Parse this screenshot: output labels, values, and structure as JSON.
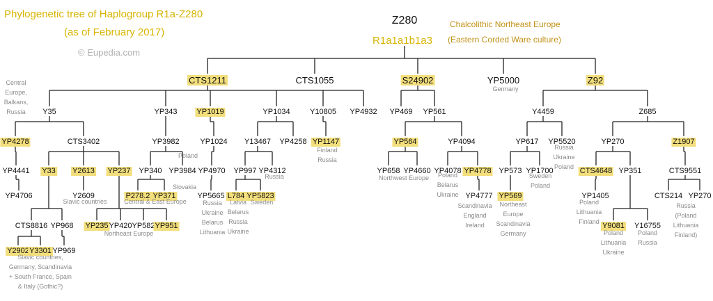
{
  "title": {
    "line1": "Phylogenetic tree of Haplogroup R1a-Z280",
    "line2": "(as of February 2017)",
    "copyright": "© Eupedia.com"
  },
  "root": {
    "name": "Z280",
    "alias": "R1a1a1b1a3",
    "period": "Chalcolithic Northeast Europe",
    "culture": "(Eastern Corded Ware culture)"
  },
  "nodes": [
    {
      "id": "CTS1211",
      "label": "CTS1211",
      "highlight": true
    },
    {
      "id": "CTS1055",
      "label": "CTS1055",
      "highlight": false
    },
    {
      "id": "S24902",
      "label": "S24902",
      "highlight": true
    },
    {
      "id": "YP5000",
      "label": "YP5000",
      "highlight": false
    },
    {
      "id": "Z92",
      "label": "Z92",
      "highlight": true
    },
    {
      "id": "Y35",
      "label": "Y35",
      "highlight": false
    },
    {
      "id": "YP343",
      "label": "YP343",
      "highlight": false
    },
    {
      "id": "YP1019",
      "label": "YP1019",
      "highlight": true
    },
    {
      "id": "YP1034",
      "label": "YP1034",
      "highlight": false
    },
    {
      "id": "Y10805",
      "label": "Y10805",
      "highlight": false
    },
    {
      "id": "YP4932",
      "label": "YP4932",
      "highlight": false
    },
    {
      "id": "YP469",
      "label": "YP469",
      "highlight": false
    },
    {
      "id": "YP561",
      "label": "YP561",
      "highlight": false
    },
    {
      "id": "Y4459",
      "label": "Y4459",
      "highlight": false
    },
    {
      "id": "Z685",
      "label": "Z685",
      "highlight": false
    },
    {
      "id": "YP4278",
      "label": "YP4278",
      "highlight": true
    },
    {
      "id": "CTS3402",
      "label": "CTS3402",
      "highlight": false
    },
    {
      "id": "YP3982",
      "label": "YP3982",
      "highlight": false
    },
    {
      "id": "YP1024",
      "label": "YP1024",
      "highlight": false
    },
    {
      "id": "Y13467",
      "label": "Y13467",
      "highlight": false
    },
    {
      "id": "YP4258",
      "label": "YP4258",
      "highlight": false
    },
    {
      "id": "YP1147",
      "label": "YP1147",
      "highlight": true
    },
    {
      "id": "YP564",
      "label": "YP564",
      "highlight": true
    },
    {
      "id": "YP4094",
      "label": "YP4094",
      "highlight": false
    },
    {
      "id": "YP617",
      "label": "YP617",
      "highlight": false
    },
    {
      "id": "YP5520",
      "label": "YP5520",
      "highlight": false
    },
    {
      "id": "YP270a",
      "label": "YP270",
      "highlight": false
    },
    {
      "id": "Z1907",
      "label": "Z1907",
      "highlight": true
    },
    {
      "id": "YP4441",
      "label": "YP4441",
      "highlight": false
    },
    {
      "id": "Y33",
      "label": "Y33",
      "highlight": true
    },
    {
      "id": "Y2613",
      "label": "Y2613",
      "highlight": true
    },
    {
      "id": "YP237",
      "label": "YP237",
      "highlight": true
    },
    {
      "id": "YP340",
      "label": "YP340",
      "highlight": false
    },
    {
      "id": "YP3984",
      "label": "YP3984",
      "highlight": false
    },
    {
      "id": "YP4970",
      "label": "YP4970",
      "highlight": false
    },
    {
      "id": "YP997",
      "label": "YP997",
      "highlight": false
    },
    {
      "id": "YP4312",
      "label": "YP4312",
      "highlight": false
    },
    {
      "id": "YP658",
      "label": "YP658",
      "highlight": false
    },
    {
      "id": "YP4660",
      "label": "YP4660",
      "highlight": false
    },
    {
      "id": "YP4078",
      "label": "YP4078",
      "highlight": false
    },
    {
      "id": "YP4778",
      "label": "YP4778",
      "highlight": true
    },
    {
      "id": "YP573",
      "label": "YP573",
      "highlight": false
    },
    {
      "id": "YP1700",
      "label": "YP1700",
      "highlight": false
    },
    {
      "id": "CTS4648",
      "label": "CTS4648",
      "highlight": true
    },
    {
      "id": "YP351",
      "label": "YP351",
      "highlight": false
    },
    {
      "id": "CTS9551",
      "label": "CTS9551",
      "highlight": false
    },
    {
      "id": "YP4706",
      "label": "YP4706",
      "highlight": false
    },
    {
      "id": "Y2609",
      "label": "Y2609",
      "highlight": false
    },
    {
      "id": "P278.2",
      "label": "P278.2",
      "highlight": true
    },
    {
      "id": "YP371",
      "label": "YP371",
      "highlight": true
    },
    {
      "id": "YP5665",
      "label": "YP5665",
      "highlight": false
    },
    {
      "id": "L784",
      "label": "L784",
      "highlight": true
    },
    {
      "id": "YP5823",
      "label": "YP5823",
      "highlight": true
    },
    {
      "id": "YP4777",
      "label": "YP4777",
      "highlight": false
    },
    {
      "id": "YP569",
      "label": "YP569",
      "highlight": true
    },
    {
      "id": "YP1405",
      "label": "YP1405",
      "highlight": false
    },
    {
      "id": "CTS214",
      "label": "CTS214",
      "highlight": false
    },
    {
      "id": "YP270b",
      "label": "YP270",
      "highlight": false
    },
    {
      "id": "CTS8816",
      "label": "CTS8816",
      "highlight": false
    },
    {
      "id": "YP968",
      "label": "YP968",
      "highlight": false
    },
    {
      "id": "YP235",
      "label": "YP235",
      "highlight": true
    },
    {
      "id": "YP420",
      "label": "YP420",
      "highlight": false
    },
    {
      "id": "YP582",
      "label": "YP582",
      "highlight": false
    },
    {
      "id": "YP951",
      "label": "YP951",
      "highlight": true
    },
    {
      "id": "Y9081",
      "label": "Y9081",
      "highlight": true
    },
    {
      "id": "Y16755",
      "label": "Y16755",
      "highlight": false
    },
    {
      "id": "Y2902",
      "label": "Y2902",
      "highlight": true
    },
    {
      "id": "Y3301",
      "label": "Y3301",
      "highlight": true
    },
    {
      "id": "YP969",
      "label": "YP969",
      "highlight": false
    }
  ],
  "geo": [
    {
      "id": "g-central-europe",
      "lines": [
        "Central",
        "Europe,",
        "Balkans,",
        "Russia"
      ]
    },
    {
      "id": "g-germany",
      "lines": [
        "Germany"
      ]
    },
    {
      "id": "g-poland-3984",
      "lines": [
        "Poland"
      ]
    },
    {
      "id": "g-slovakia",
      "lines": [
        "Slovakia"
      ]
    },
    {
      "id": "g-central-east",
      "lines": [
        "Central & East Europe"
      ]
    },
    {
      "id": "g-slavic",
      "lines": [
        "Slavic countries"
      ]
    },
    {
      "id": "g-finland-russia",
      "lines": [
        "Finland",
        "Russia"
      ]
    },
    {
      "id": "g-russia-4312",
      "lines": [
        "Russia"
      ]
    },
    {
      "id": "g-l784",
      "lines": [
        "Latvia",
        "Belarus",
        "Russia",
        "Ukraine"
      ]
    },
    {
      "id": "g-sweden-5823",
      "lines": [
        "Sweden"
      ]
    },
    {
      "id": "g-5665",
      "lines": [
        "Russia",
        "Ukraine",
        "Belarus",
        "Lithuania"
      ]
    },
    {
      "id": "g-northwest",
      "lines": [
        "Northwest Europe"
      ]
    },
    {
      "id": "g-4078",
      "lines": [
        "Poland",
        "Belarus",
        "Ukraine"
      ]
    },
    {
      "id": "g-4777",
      "lines": [
        "Scandinavia",
        "England",
        "Ireland"
      ]
    },
    {
      "id": "g-5520",
      "lines": [
        "Russia",
        "Ukraine",
        "Poland"
      ]
    },
    {
      "id": "g-1700",
      "lines": [
        "Sweden",
        "Poland"
      ]
    },
    {
      "id": "g-569",
      "lines": [
        "Northeast",
        "Europe",
        "Scandinavia",
        "Germany"
      ]
    },
    {
      "id": "g-1405",
      "lines": [
        "Poland",
        "Lithuania",
        "Finland"
      ]
    },
    {
      "id": "g-9081",
      "lines": [
        "Poland",
        "Lithuania",
        "Ukraine"
      ]
    },
    {
      "id": "g-16755",
      "lines": [
        "Poland",
        "Russia"
      ]
    },
    {
      "id": "g-270b",
      "lines": [
        "Russia",
        "(Poland",
        "Lithuania",
        "Finland)"
      ]
    },
    {
      "id": "g-northeast",
      "lines": [
        "Northeast Europe"
      ]
    },
    {
      "id": "g-gothic",
      "lines": [
        "Slavic countries,",
        "Germany, Scandinavia",
        "+ South France, Spain",
        "& Italy (Gothic?)"
      ]
    }
  ]
}
